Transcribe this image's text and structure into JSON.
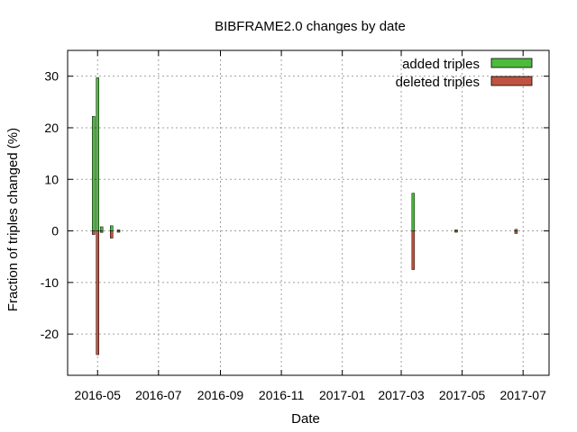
{
  "chart_data": {
    "type": "bar",
    "title": "BIBFRAME2.0 changes by date",
    "xlabel": "Date",
    "ylabel": "Fraction of triples changed (%)",
    "ylim": [
      -28,
      35
    ],
    "yticks": [
      30,
      20,
      10,
      0,
      -10,
      -20
    ],
    "xlim": [
      "2016-04-01",
      "2017-07-27"
    ],
    "xticks": [
      {
        "date": "2016-05-01",
        "label": "2016-05"
      },
      {
        "date": "2016-07-01",
        "label": "2016-07"
      },
      {
        "date": "2016-09-01",
        "label": "2016-09"
      },
      {
        "date": "2016-11-01",
        "label": "2016-11"
      },
      {
        "date": "2017-01-01",
        "label": "2017-01"
      },
      {
        "date": "2017-03-01",
        "label": "2017-03"
      },
      {
        "date": "2017-05-01",
        "label": "2017-05"
      },
      {
        "date": "2017-07-01",
        "label": "2017-07"
      }
    ],
    "grid": true,
    "legend_position": "top-right",
    "series": [
      {
        "name": "added triples",
        "color": "#4cbb3c",
        "points": [
          {
            "x": "2016-04-27",
            "y": 22.2
          },
          {
            "x": "2016-05-01",
            "y": 29.7
          },
          {
            "x": "2016-05-05",
            "y": 0.8
          },
          {
            "x": "2016-05-15",
            "y": 1.0
          },
          {
            "x": "2016-05-22",
            "y": 0.2
          },
          {
            "x": "2017-03-13",
            "y": 7.3
          },
          {
            "x": "2017-04-25",
            "y": 0.2
          },
          {
            "x": "2017-06-24",
            "y": 0.3
          }
        ]
      },
      {
        "name": "deleted triples",
        "color": "#c0533f",
        "points": [
          {
            "x": "2016-04-27",
            "y": -0.7
          },
          {
            "x": "2016-05-01",
            "y": -24.0
          },
          {
            "x": "2016-05-05",
            "y": -0.3
          },
          {
            "x": "2016-05-15",
            "y": -1.4
          },
          {
            "x": "2016-05-22",
            "y": -0.2
          },
          {
            "x": "2017-03-13",
            "y": -7.5
          },
          {
            "x": "2017-04-25",
            "y": -0.2
          },
          {
            "x": "2017-06-24",
            "y": -0.5
          }
        ]
      }
    ]
  }
}
